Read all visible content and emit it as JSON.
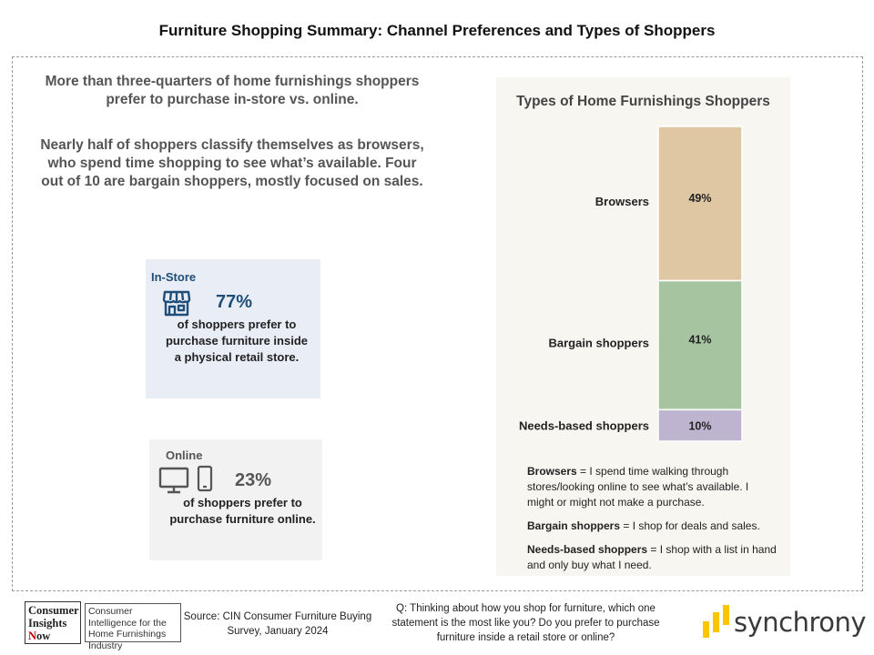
{
  "title": "Furniture Shopping Summary:  Channel Preferences and Types of Shoppers",
  "intro": {
    "paragraph1": "More than three-quarters of home furnishings shoppers prefer to purchase in-store vs. online.",
    "paragraph2": "Nearly half of shoppers classify themselves as browsers, who spend time shopping to see what’s available. Four out of 10 are bargain shoppers, mostly focused on sales."
  },
  "instore": {
    "label": "In-Store",
    "percent": "77%",
    "description": "of shoppers prefer to purchase furniture inside a physical retail store.",
    "icon": "storefront-icon",
    "color": "#1f4e79"
  },
  "online": {
    "label": "Online",
    "percent": "23%",
    "description": "of shoppers prefer to purchase furniture online.",
    "icons": [
      "monitor-icon",
      "smartphone-icon"
    ],
    "color": "#555555"
  },
  "chart_data": {
    "type": "bar",
    "stacked": true,
    "title": "Types of Home Furnishings Shoppers",
    "categories": [
      "Browsers",
      "Bargain shoppers",
      "Needs-based shoppers"
    ],
    "values": [
      49,
      41,
      10
    ],
    "value_labels": [
      "49%",
      "41%",
      "10%"
    ],
    "colors": [
      "#dfc7a3",
      "#a6c49f",
      "#bfb4cf"
    ],
    "legend": "none",
    "grid": false
  },
  "definitions": [
    {
      "term": "Browsers",
      "text": " = I spend time walking through stores/looking  online to see what’s available.  I might or might not make a purchase."
    },
    {
      "term": "Bargain shoppers",
      "text": " = I shop for deals and sales."
    },
    {
      "term": "Needs-based shoppers",
      "text": " = I shop  with a list in hand and only buy what I need."
    }
  ],
  "footer": {
    "logo_left": {
      "line1": "Consumer",
      "line2": "Insights",
      "line3_accent": "N",
      "line3_rest": "ow"
    },
    "logo_right": "Consumer Intelligence for the Home Furnishings Industry",
    "source": "Source:  CIN Consumer Furniture Buying Survey, January 2024",
    "question": "Q: Thinking about how you shop for furniture, which one statement  is the most like you? Do you prefer to purchase furniture inside a retail store or online?",
    "brand": "synchrony",
    "brand_color": "#fbc600"
  }
}
